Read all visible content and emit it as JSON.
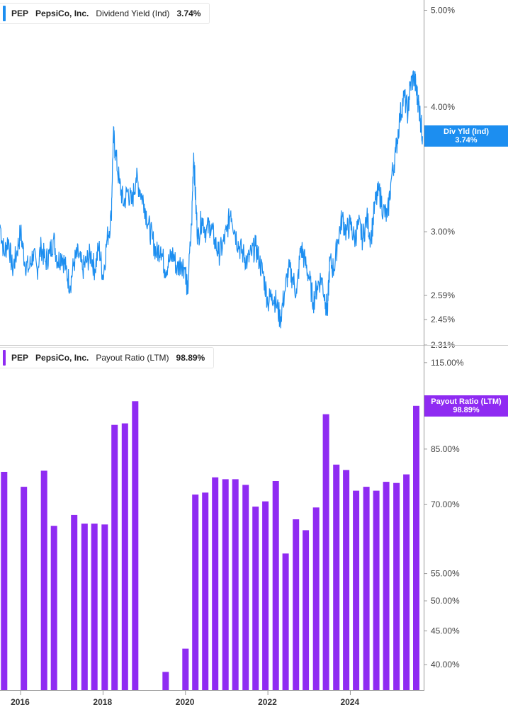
{
  "colors": {
    "yield": "#1c8ef0",
    "payout": "#8f2bf2",
    "axis": "#9a9a9a",
    "panel_divider": "#cccccc"
  },
  "legend_top": {
    "ticker": "PEP",
    "company": "PepsiCo, Inc.",
    "metric": "Dividend Yield (Ind)",
    "value": "3.74%"
  },
  "legend_bottom": {
    "ticker": "PEP",
    "company": "PepsiCo, Inc.",
    "metric": "Payout Ratio (LTM)",
    "value": "98.89%"
  },
  "tag_top": {
    "label": "Div Yld (Ind)",
    "value": "3.74%"
  },
  "tag_bottom": {
    "label": "Payout Ratio (LTM)",
    "value": "98.89%"
  },
  "chart_data": [
    {
      "type": "line",
      "series": [
        {
          "name": "Dividend Yield (Ind)",
          "last_value": 3.74
        }
      ],
      "yscale": "log",
      "ylim": [
        2.31,
        5.12
      ],
      "yticks": [
        "5.00%",
        "4.00%",
        "3.00%",
        "2.59%",
        "2.45%",
        "2.31%"
      ],
      "xlim": [
        2015.5,
        2025.78
      ],
      "points": [
        [
          2015.5,
          3.05
        ],
        [
          2015.6,
          2.85
        ],
        [
          2015.7,
          2.95
        ],
        [
          2015.8,
          2.75
        ],
        [
          2015.9,
          2.85
        ],
        [
          2016.0,
          3.0
        ],
        [
          2016.1,
          2.8
        ],
        [
          2016.2,
          2.75
        ],
        [
          2016.3,
          2.85
        ],
        [
          2016.4,
          2.75
        ],
        [
          2016.5,
          2.9
        ],
        [
          2016.6,
          2.8
        ],
        [
          2016.7,
          2.85
        ],
        [
          2016.8,
          2.95
        ],
        [
          2016.9,
          2.8
        ],
        [
          2017.0,
          2.85
        ],
        [
          2017.1,
          2.75
        ],
        [
          2017.2,
          2.65
        ],
        [
          2017.3,
          2.8
        ],
        [
          2017.4,
          2.85
        ],
        [
          2017.5,
          2.75
        ],
        [
          2017.6,
          2.8
        ],
        [
          2017.7,
          2.85
        ],
        [
          2017.8,
          2.75
        ],
        [
          2017.9,
          2.9
        ],
        [
          2018.0,
          2.7
        ],
        [
          2018.1,
          2.95
        ],
        [
          2018.2,
          3.1
        ],
        [
          2018.25,
          3.75
        ],
        [
          2018.3,
          3.6
        ],
        [
          2018.4,
          3.35
        ],
        [
          2018.5,
          3.2
        ],
        [
          2018.6,
          3.3
        ],
        [
          2018.7,
          3.2
        ],
        [
          2018.8,
          3.4
        ],
        [
          2018.9,
          3.3
        ],
        [
          2019.0,
          3.2
        ],
        [
          2019.1,
          3.05
        ],
        [
          2019.2,
          2.95
        ],
        [
          2019.3,
          2.85
        ],
        [
          2019.4,
          2.9
        ],
        [
          2019.5,
          2.75
        ],
        [
          2019.6,
          2.8
        ],
        [
          2019.7,
          2.85
        ],
        [
          2019.8,
          2.75
        ],
        [
          2019.9,
          2.8
        ],
        [
          2020.0,
          2.75
        ],
        [
          2020.05,
          2.6
        ],
        [
          2020.15,
          3.05
        ],
        [
          2020.2,
          3.6
        ],
        [
          2020.25,
          3.2
        ],
        [
          2020.3,
          2.95
        ],
        [
          2020.4,
          3.1
        ],
        [
          2020.5,
          3.0
        ],
        [
          2020.6,
          3.05
        ],
        [
          2020.7,
          2.95
        ],
        [
          2020.8,
          2.85
        ],
        [
          2020.9,
          2.9
        ],
        [
          2021.0,
          3.0
        ],
        [
          2021.1,
          3.15
        ],
        [
          2021.2,
          3.0
        ],
        [
          2021.3,
          2.9
        ],
        [
          2021.4,
          2.85
        ],
        [
          2021.5,
          2.8
        ],
        [
          2021.6,
          2.85
        ],
        [
          2021.7,
          2.9
        ],
        [
          2021.8,
          2.8
        ],
        [
          2021.9,
          2.7
        ],
        [
          2022.0,
          2.55
        ],
        [
          2022.1,
          2.6
        ],
        [
          2022.2,
          2.55
        ],
        [
          2022.3,
          2.45
        ],
        [
          2022.4,
          2.6
        ],
        [
          2022.5,
          2.75
        ],
        [
          2022.6,
          2.7
        ],
        [
          2022.7,
          2.6
        ],
        [
          2022.8,
          2.9
        ],
        [
          2022.9,
          2.8
        ],
        [
          2023.0,
          2.7
        ],
        [
          2023.1,
          2.55
        ],
        [
          2023.2,
          2.65
        ],
        [
          2023.3,
          2.7
        ],
        [
          2023.4,
          2.55
        ],
        [
          2023.45,
          2.5
        ],
        [
          2023.5,
          2.8
        ],
        [
          2023.6,
          2.75
        ],
        [
          2023.7,
          2.95
        ],
        [
          2023.8,
          3.1
        ],
        [
          2023.9,
          3.0
        ],
        [
          2024.0,
          3.05
        ],
        [
          2024.1,
          2.95
        ],
        [
          2024.2,
          3.05
        ],
        [
          2024.3,
          2.95
        ],
        [
          2024.4,
          3.1
        ],
        [
          2024.5,
          2.95
        ],
        [
          2024.6,
          3.2
        ],
        [
          2024.7,
          3.3
        ],
        [
          2024.8,
          3.15
        ],
        [
          2024.9,
          3.1
        ],
        [
          2025.0,
          3.4
        ],
        [
          2025.1,
          3.6
        ],
        [
          2025.2,
          3.9
        ],
        [
          2025.3,
          4.1
        ],
        [
          2025.4,
          3.95
        ],
        [
          2025.45,
          4.2
        ],
        [
          2025.55,
          4.3
        ],
        [
          2025.6,
          4.15
        ],
        [
          2025.65,
          4.05
        ],
        [
          2025.7,
          3.9
        ],
        [
          2025.75,
          3.74
        ]
      ]
    },
    {
      "type": "bar",
      "series": [
        {
          "name": "Payout Ratio (LTM)",
          "last_value": 98.89
        }
      ],
      "yscale": "log",
      "ylim": [
        36.6,
        122
      ],
      "yticks": [
        "115.00%",
        "85.00%",
        "70.00%",
        "55.00%",
        "50.00%",
        "45.00%",
        "40.00%"
      ],
      "x": [
        2015.6,
        2015.84,
        2016.08,
        2016.32,
        2016.57,
        2016.81,
        2017.06,
        2017.3,
        2017.55,
        2017.79,
        2018.04,
        2018.28,
        2018.53,
        2018.78,
        2019.02,
        2019.27,
        2019.52,
        2019.76,
        2020.0,
        2020.24,
        2020.48,
        2020.72,
        2020.97,
        2021.21,
        2021.46,
        2021.7,
        2021.94,
        2022.19,
        2022.43,
        2022.68,
        2022.92,
        2023.17,
        2023.41,
        2023.66,
        2023.9,
        2024.14,
        2024.39,
        2024.63,
        2024.87,
        2025.12,
        2025.36,
        2025.6
      ],
      "values": [
        78.5,
        null,
        74.5,
        null,
        78.8,
        65.0,
        null,
        67.5,
        65.5,
        65.5,
        65.3,
        92.5,
        93.0,
        100.5,
        null,
        null,
        39.0,
        null,
        42.3,
        72.5,
        73.0,
        77.0,
        76.5,
        76.5,
        75.0,
        69.5,
        70.8,
        76.0,
        59.0,
        66.5,
        64.0,
        69.3,
        96.0,
        80.5,
        79.0,
        73.5,
        74.5,
        73.5,
        75.8,
        75.5,
        77.8,
        98.89
      ]
    }
  ],
  "x_axis": {
    "labels": [
      "2016",
      "2018",
      "2020",
      "2022",
      "2024"
    ],
    "years": [
      2016,
      2018,
      2020,
      2022,
      2024
    ]
  }
}
